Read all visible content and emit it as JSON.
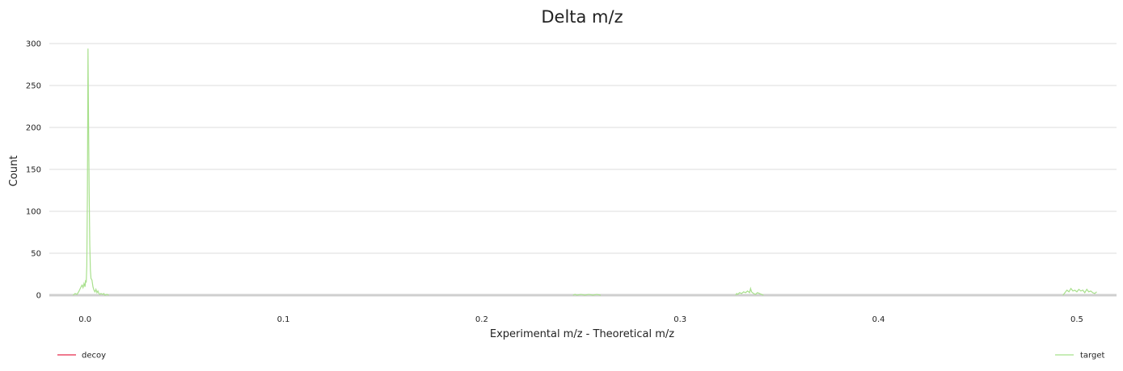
{
  "chart_data": {
    "type": "line",
    "title": "Delta m/z",
    "xlabel": "Experimental m/z - Theoretical m/z",
    "ylabel": "Count",
    "xlim": [
      -0.018,
      0.52
    ],
    "ylim": [
      0,
      300
    ],
    "x_ticks": [
      0.0,
      0.1,
      0.2,
      0.3,
      0.4,
      0.5
    ],
    "x_tick_labels": [
      "0.0",
      "0.1",
      "0.2",
      "0.3",
      "0.4",
      "0.5"
    ],
    "y_ticks": [
      0,
      50,
      100,
      150,
      200,
      250,
      300
    ],
    "y_tick_labels": [
      "0",
      "50",
      "100",
      "150",
      "200",
      "250",
      "300"
    ],
    "grid": "horizontal",
    "legend": [
      {
        "name": "decoy",
        "color": "#e8294b",
        "placement": "bottom-left"
      },
      {
        "name": "target",
        "color": "#a8e08c",
        "placement": "bottom-right"
      }
    ],
    "series": [
      {
        "name": "target",
        "color": "#a8e08c",
        "points": [
          [
            -0.006,
            0
          ],
          [
            -0.005,
            2
          ],
          [
            -0.004,
            1
          ],
          [
            -0.003,
            5
          ],
          [
            -0.002,
            10
          ],
          [
            -0.0015,
            12
          ],
          [
            -0.001,
            9
          ],
          [
            -0.0005,
            14
          ],
          [
            0.0,
            10
          ],
          [
            0.0003,
            18
          ],
          [
            0.0006,
            15
          ],
          [
            0.0009,
            35
          ],
          [
            0.0012,
            120
          ],
          [
            0.0015,
            294
          ],
          [
            0.0018,
            200
          ],
          [
            0.0021,
            120
          ],
          [
            0.0024,
            60
          ],
          [
            0.0027,
            30
          ],
          [
            0.003,
            20
          ],
          [
            0.0035,
            18
          ],
          [
            0.004,
            10
          ],
          [
            0.0045,
            6
          ],
          [
            0.005,
            4
          ],
          [
            0.0055,
            7
          ],
          [
            0.006,
            3
          ],
          [
            0.0065,
            5
          ],
          [
            0.007,
            2
          ],
          [
            0.0075,
            1
          ],
          [
            0.008,
            2
          ],
          [
            0.009,
            1
          ],
          [
            0.0095,
            2
          ],
          [
            0.01,
            0
          ],
          [
            0.011,
            1
          ],
          [
            0.012,
            0
          ],
          [
            0.246,
            0
          ],
          [
            0.247,
            1
          ],
          [
            0.248,
            0
          ],
          [
            0.25,
            1
          ],
          [
            0.252,
            0
          ],
          [
            0.254,
            1
          ],
          [
            0.256,
            0
          ],
          [
            0.258,
            1
          ],
          [
            0.26,
            0
          ],
          [
            0.328,
            0
          ],
          [
            0.3285,
            2
          ],
          [
            0.329,
            1
          ],
          [
            0.33,
            3
          ],
          [
            0.331,
            2
          ],
          [
            0.332,
            4
          ],
          [
            0.333,
            3
          ],
          [
            0.334,
            5
          ],
          [
            0.335,
            3
          ],
          [
            0.3355,
            8
          ],
          [
            0.336,
            4
          ],
          [
            0.337,
            2
          ],
          [
            0.338,
            1
          ],
          [
            0.339,
            3
          ],
          [
            0.34,
            2
          ],
          [
            0.341,
            1
          ],
          [
            0.342,
            0
          ],
          [
            0.493,
            0
          ],
          [
            0.494,
            3
          ],
          [
            0.495,
            6
          ],
          [
            0.496,
            4
          ],
          [
            0.497,
            8
          ],
          [
            0.498,
            5
          ],
          [
            0.499,
            6
          ],
          [
            0.5,
            4
          ],
          [
            0.501,
            7
          ],
          [
            0.502,
            5
          ],
          [
            0.503,
            6
          ],
          [
            0.504,
            3
          ],
          [
            0.505,
            7
          ],
          [
            0.506,
            4
          ],
          [
            0.507,
            5
          ],
          [
            0.508,
            3
          ],
          [
            0.509,
            2
          ],
          [
            0.51,
            4
          ]
        ]
      },
      {
        "name": "decoy",
        "color": "#e8294b",
        "points": []
      }
    ]
  }
}
